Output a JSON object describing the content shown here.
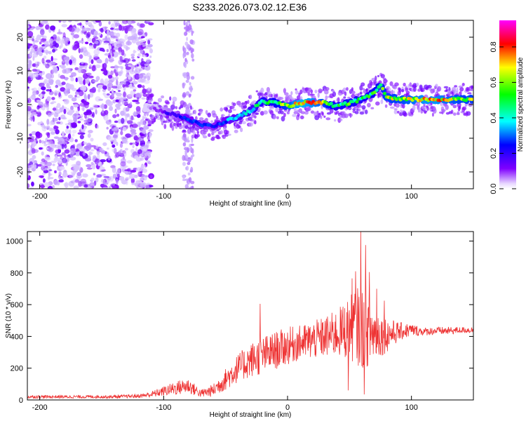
{
  "title": "S233.2026.073.02.12.E36",
  "chart_data": [
    {
      "type": "heatmap",
      "title": "S233.2026.073.02.12.E36",
      "xlabel": "Height of straight line (km)",
      "ylabel": "Frequency (Hz)",
      "xlim": [
        -210,
        150
      ],
      "ylim": [
        -25,
        25
      ],
      "xticks": [
        -200,
        -100,
        0,
        100
      ],
      "yticks": [
        -20,
        -10,
        0,
        10,
        20
      ],
      "colorbar": {
        "label": "Normalized spectral amplitude",
        "range": [
          0.0,
          0.95
        ],
        "ticks": [
          "0.0",
          "0.2",
          "0.4",
          "0.6",
          "0.8"
        ],
        "tick_values": [
          0.0,
          0.2,
          0.4,
          0.6,
          0.8
        ],
        "colors": [
          "#ffffff",
          "#7f00ff",
          "#0000ff",
          "#00ffff",
          "#00ff00",
          "#ffff00",
          "#ff0000",
          "#ff00ff"
        ]
      },
      "ridge": {
        "x": [
          -110,
          -100,
          -90,
          -80,
          -70,
          -60,
          -50,
          -40,
          -30,
          -20,
          -10,
          0,
          10,
          20,
          30,
          40,
          50,
          60,
          70,
          75,
          80,
          90,
          100,
          110,
          120,
          130,
          140,
          150
        ],
        "y": [
          -1,
          -2,
          -3,
          -4.5,
          -6,
          -6.5,
          -5,
          -3.5,
          -2,
          1,
          0.5,
          -0.5,
          0.5,
          0.5,
          0.5,
          -0.5,
          0.5,
          1.5,
          3.5,
          6,
          2,
          1.5,
          1.5,
          1.5,
          1.5,
          1.5,
          1.5,
          1.5
        ],
        "amplitude": [
          0.1,
          0.2,
          0.25,
          0.35,
          0.3,
          0.3,
          0.35,
          0.45,
          0.45,
          0.55,
          0.6,
          0.7,
          0.85,
          0.8,
          0.7,
          0.55,
          0.6,
          0.55,
          0.6,
          0.65,
          0.7,
          0.7,
          0.75,
          0.8,
          0.8,
          0.75,
          0.7,
          0.7
        ]
      },
      "noise_region": [
        -210,
        -110
      ]
    },
    {
      "type": "line",
      "title": "",
      "xlabel": "Height of straight line (km)",
      "ylabel": "SNR (10 * v/v)",
      "xlim": [
        -210,
        150
      ],
      "ylim": [
        0,
        1060
      ],
      "xticks": [
        -200,
        -100,
        0,
        100
      ],
      "yticks": [
        0,
        200,
        400,
        600,
        800,
        1000
      ],
      "series": [
        {
          "name": "SNR",
          "color": "#ee3333",
          "x": [
            -210,
            -200,
            -180,
            -160,
            -140,
            -120,
            -110,
            -100,
            -90,
            -80,
            -70,
            -60,
            -50,
            -40,
            -30,
            -20,
            -10,
            0,
            10,
            20,
            30,
            40,
            50,
            55,
            60,
            65,
            70,
            80,
            90,
            100,
            110,
            120,
            130,
            140,
            150
          ],
          "values": [
            20,
            20,
            20,
            20,
            20,
            25,
            35,
            55,
            75,
            90,
            40,
            60,
            130,
            200,
            250,
            280,
            310,
            340,
            360,
            375,
            395,
            420,
            450,
            470,
            450,
            430,
            420,
            410,
            430,
            440,
            430,
            435,
            435,
            440,
            440
          ],
          "jitter": [
            10,
            10,
            10,
            10,
            10,
            12,
            20,
            30,
            45,
            50,
            25,
            40,
            70,
            90,
            110,
            120,
            120,
            120,
            110,
            120,
            130,
            150,
            200,
            240,
            260,
            220,
            180,
            110,
            60,
            40,
            25,
            25,
            25,
            20,
            20
          ],
          "peaks": [
            {
              "x": -22,
              "y": 605
            },
            {
              "x": 52,
              "y": 765
            },
            {
              "x": 55,
              "y": 810
            },
            {
              "x": 59,
              "y": 1060
            },
            {
              "x": 63,
              "y": 975
            },
            {
              "x": 66,
              "y": 805
            },
            {
              "x": 72,
              "y": 700
            },
            {
              "x": 78,
              "y": 625
            },
            {
              "x": 62,
              "y": 35
            },
            {
              "x": 49,
              "y": 60
            }
          ]
        }
      ]
    }
  ]
}
